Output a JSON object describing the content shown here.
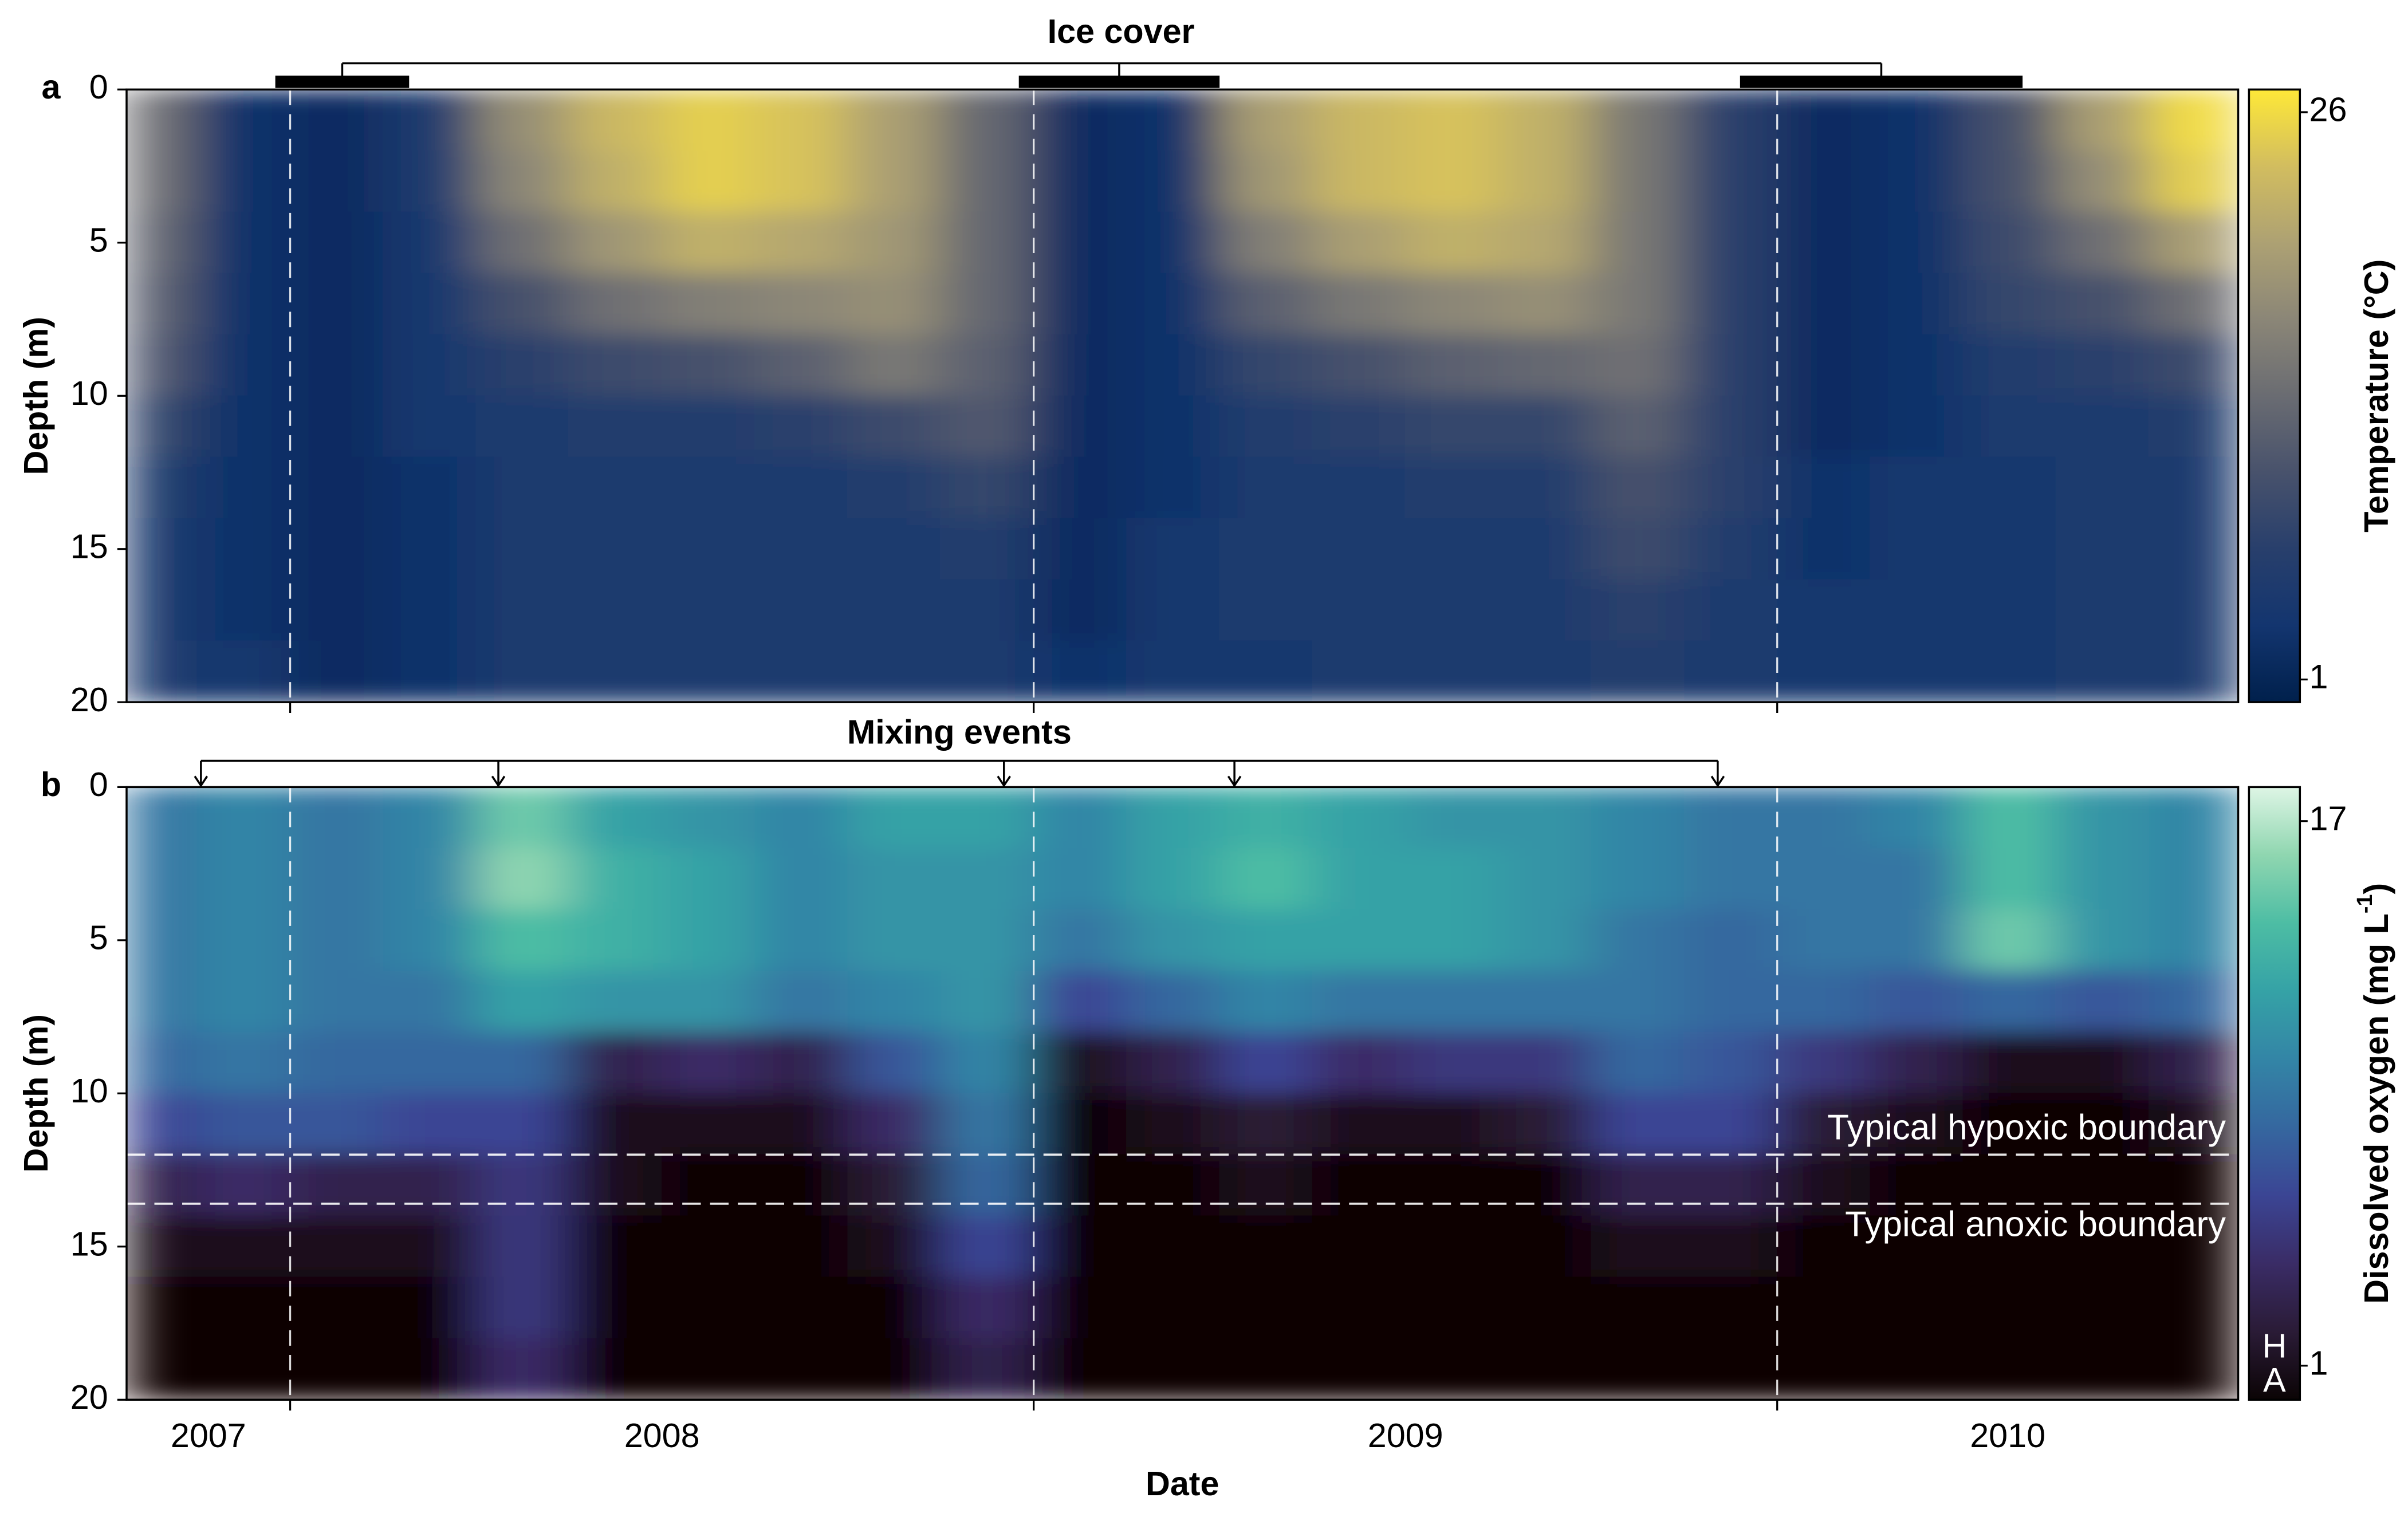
{
  "chart_data": [
    {
      "type": "contour",
      "panel_label": "a",
      "annotation": {
        "label": "Ice cover",
        "periods": [
          [
            2007.98,
            2008.16
          ],
          [
            2008.98,
            2009.25
          ],
          [
            2009.95,
            2010.33
          ]
        ]
      },
      "ylabel": "Depth (m)",
      "ylim": [
        20,
        0
      ],
      "yticks": [
        0,
        5,
        10,
        15,
        20
      ],
      "xlim": [
        2007.78,
        2010.62
      ],
      "year_boundaries": [
        2008,
        2009,
        2010
      ],
      "x": [
        2007.8125,
        2007.9375,
        2008.0625,
        2008.1875,
        2008.3125,
        2008.4375,
        2008.5625,
        2008.6875,
        2008.8125,
        2008.9375,
        2009.0625,
        2009.1875,
        2009.3125,
        2009.4375,
        2009.5625,
        2009.6875,
        2009.8125,
        2009.9375,
        2010.0625,
        2010.1875,
        2010.3125,
        2010.4375,
        2010.5625
      ],
      "depth": [
        1,
        3,
        5,
        7,
        9,
        11,
        13,
        15,
        17,
        19
      ],
      "values": [
        [
          14,
          14,
          13,
          12,
          11,
          8,
          6,
          5,
          5,
          5
        ],
        [
          3,
          3,
          3,
          3,
          3,
          3,
          3,
          3,
          3,
          4
        ],
        [
          2,
          2,
          2,
          2,
          2,
          2,
          2,
          2,
          2,
          2
        ],
        [
          5,
          5,
          4,
          4,
          4,
          4,
          3,
          3,
          3,
          3
        ],
        [
          18,
          17,
          14,
          10,
          7,
          5,
          5,
          5,
          5,
          5
        ],
        [
          23,
          22,
          19,
          14,
          9,
          6,
          5,
          5,
          5,
          5
        ],
        [
          25,
          25,
          22,
          16,
          10,
          6,
          5,
          5,
          5,
          5
        ],
        [
          24,
          24,
          21,
          17,
          12,
          7,
          5,
          5,
          5,
          5
        ],
        [
          20,
          20,
          19,
          18,
          15,
          9,
          6,
          5,
          5,
          5
        ],
        [
          13,
          13,
          13,
          13,
          12,
          11,
          8,
          6,
          5,
          5
        ],
        [
          2,
          2,
          2,
          2,
          2,
          2,
          2,
          2,
          2,
          3
        ],
        [
          3,
          3,
          3,
          3,
          3,
          3,
          3,
          4,
          4,
          4
        ],
        [
          20,
          19,
          16,
          12,
          8,
          6,
          5,
          5,
          5,
          4
        ],
        [
          23,
          23,
          20,
          15,
          10,
          7,
          5,
          5,
          5,
          5
        ],
        [
          24,
          24,
          22,
          17,
          12,
          8,
          6,
          5,
          5,
          5
        ],
        [
          22,
          22,
          21,
          18,
          13,
          8,
          6,
          5,
          5,
          5
        ],
        [
          15,
          15,
          15,
          15,
          14,
          12,
          10,
          9,
          7,
          6
        ],
        [
          7,
          7,
          7,
          7,
          7,
          7,
          7,
          6,
          5,
          5
        ],
        [
          2,
          2,
          2,
          2,
          2,
          2,
          3,
          3,
          4,
          4
        ],
        [
          3,
          3,
          3,
          3,
          3,
          3,
          4,
          4,
          4,
          4
        ],
        [
          10,
          10,
          9,
          8,
          6,
          5,
          4,
          4,
          4,
          4
        ],
        [
          20,
          18,
          14,
          10,
          7,
          5,
          5,
          5,
          5,
          5
        ],
        [
          26,
          25,
          20,
          14,
          9,
          6,
          5,
          5,
          5,
          5
        ]
      ],
      "colorbar": {
        "label": "Temperature (°C)",
        "lim": [
          0,
          27
        ],
        "ticks": [
          1,
          26
        ],
        "colors": [
          "#00204c",
          "#13356f",
          "#283f6c",
          "#48526c",
          "#6a6c72",
          "#8b8677",
          "#ada173",
          "#d2bd5f",
          "#fee838"
        ]
      }
    },
    {
      "type": "contour",
      "panel_label": "b",
      "annotation": {
        "label": "Mixing events",
        "times": [
          2007.88,
          2008.28,
          2008.96,
          2009.27,
          2009.92
        ]
      },
      "ylabel": "Depth (m)",
      "ylim": [
        20,
        0
      ],
      "yticks": [
        0,
        5,
        10,
        15,
        20
      ],
      "xlim": [
        2007.78,
        2010.62
      ],
      "year_boundaries": [
        2008,
        2009,
        2010
      ],
      "x": [
        2007.8125,
        2007.9375,
        2008.0625,
        2008.1875,
        2008.3125,
        2008.4375,
        2008.5625,
        2008.6875,
        2008.8125,
        2008.9375,
        2009.0625,
        2009.1875,
        2009.3125,
        2009.4375,
        2009.5625,
        2009.6875,
        2009.8125,
        2009.9375,
        2010.0625,
        2010.1875,
        2010.3125,
        2010.4375,
        2010.5625
      ],
      "depth": [
        1,
        3,
        5,
        7,
        9,
        11,
        13,
        15,
        17,
        19
      ],
      "values": [
        [
          9,
          9,
          9,
          9,
          8,
          6,
          3,
          1,
          0,
          0
        ],
        [
          10,
          10,
          10,
          10,
          9,
          7,
          4,
          1,
          0,
          0
        ],
        [
          9,
          9,
          9,
          9,
          8,
          7,
          3,
          1,
          0,
          0
        ],
        [
          10,
          10,
          10,
          9,
          8,
          6,
          3,
          1,
          0,
          0
        ],
        [
          15,
          16,
          14,
          12,
          8,
          6,
          5,
          5,
          5,
          4
        ],
        [
          12,
          13,
          13,
          11,
          3,
          1,
          1,
          0,
          0,
          0
        ],
        [
          11,
          12,
          12,
          11,
          4,
          1,
          0,
          0,
          0,
          0
        ],
        [
          10,
          10,
          10,
          9,
          3,
          1,
          0,
          0,
          0,
          0
        ],
        [
          12,
          11,
          11,
          10,
          7,
          4,
          2,
          1,
          0,
          0
        ],
        [
          12,
          11,
          11,
          11,
          10,
          9,
          8,
          6,
          4,
          3
        ],
        [
          10,
          10,
          9,
          6,
          1,
          0,
          0,
          0,
          0,
          0
        ],
        [
          12,
          12,
          11,
          8,
          3,
          1,
          0,
          0,
          0,
          0
        ],
        [
          13,
          14,
          12,
          10,
          6,
          2,
          1,
          0,
          0,
          0
        ],
        [
          12,
          12,
          12,
          9,
          4,
          1,
          0,
          0,
          0,
          0
        ],
        [
          11,
          12,
          12,
          9,
          5,
          1,
          0,
          0,
          0,
          0
        ],
        [
          11,
          11,
          11,
          9,
          5,
          2,
          0,
          0,
          0,
          0
        ],
        [
          10,
          10,
          9,
          9,
          8,
          6,
          3,
          1,
          0,
          0
        ],
        [
          9,
          9,
          8,
          8,
          7,
          6,
          3,
          1,
          0,
          0
        ],
        [
          9,
          9,
          9,
          8,
          5,
          2,
          1,
          0,
          0,
          0
        ],
        [
          10,
          9,
          9,
          7,
          3,
          1,
          0,
          0,
          0,
          0
        ],
        [
          14,
          14,
          15,
          8,
          1,
          0,
          0,
          0,
          0,
          0
        ],
        [
          11,
          11,
          11,
          7,
          1,
          0,
          0,
          0,
          0,
          0
        ],
        [
          10,
          10,
          10,
          8,
          3,
          1,
          0,
          0,
          0,
          0
        ]
      ],
      "boundaries": [
        {
          "label": "Typical hypoxic boundary",
          "depth": 12
        },
        {
          "label": "Typical anoxic boundary",
          "depth": 13.6
        }
      ],
      "colorbar": {
        "label": "Dissolved oxygen (mg L",
        "label_superscript": "-1",
        "label_end": ")",
        "lim": [
          0,
          18
        ],
        "ticks": [
          1,
          17
        ],
        "colors": [
          "#0b0405",
          "#2a1b36",
          "#3a2c66",
          "#3b4594",
          "#35679f",
          "#3385a6",
          "#35a2a6",
          "#4dbda4",
          "#8fd6b0",
          "#def5e5"
        ],
        "classes": [
          {
            "label": "H",
            "range": [
              1,
              2
            ]
          },
          {
            "label": "A",
            "range": [
              0,
              1
            ]
          }
        ]
      },
      "xlabel": "Date",
      "x_labels": [
        "2007",
        "2008",
        "2009",
        "2010"
      ]
    }
  ]
}
